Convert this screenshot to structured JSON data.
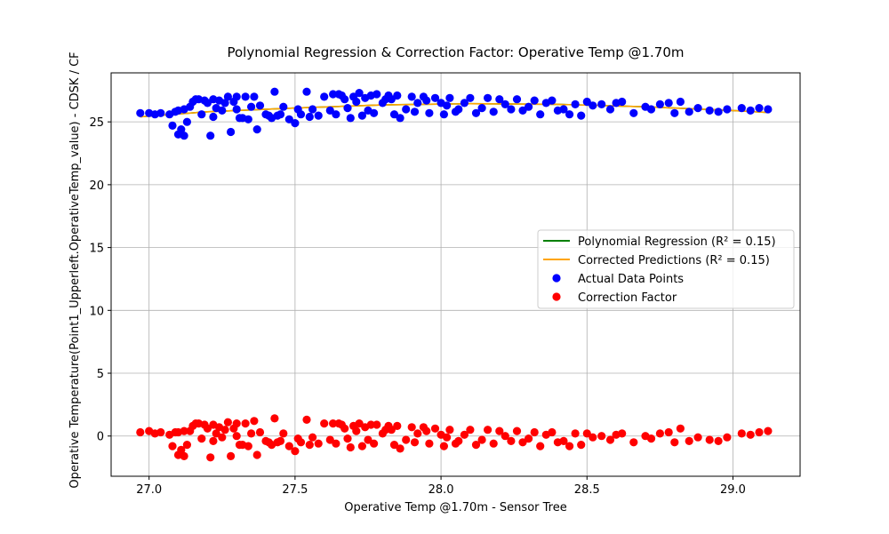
{
  "chart_data": {
    "type": "scatter",
    "title": "Polynomial Regression & Correction Factor: Operative Temp @1.70m",
    "xlabel": "Operative Temp @1.70m - Sensor Tree",
    "ylabel": "Operative Temperature(Point1_Upperleft.OperativeTemp_value) - CDSK / CF",
    "xlim": [
      26.87,
      29.23
    ],
    "ylim": [
      -3.2,
      28.9
    ],
    "xticks": [
      27.0,
      27.5,
      28.0,
      28.5,
      29.0
    ],
    "xtick_labels": [
      "27.0",
      "27.5",
      "28.0",
      "28.5",
      "29.0"
    ],
    "yticks": [
      0,
      5,
      10,
      15,
      20,
      25
    ],
    "ytick_labels": [
      "0",
      "5",
      "10",
      "15",
      "20",
      "25"
    ],
    "grid": true,
    "legend_position": "center-right",
    "legend": [
      {
        "label": "Polynomial Regression (R² = 0.15)",
        "kind": "line",
        "color": "#008000"
      },
      {
        "label": "Corrected Predictions (R² = 0.15)",
        "kind": "line",
        "color": "#ffa500"
      },
      {
        "label": "Actual Data Points",
        "kind": "marker",
        "color": "#0000ff"
      },
      {
        "label": "Correction Factor",
        "kind": "marker",
        "color": "#ff0000"
      }
    ],
    "series": [
      {
        "name": "Polynomial Regression (R² = 0.15)",
        "type": "line",
        "color": "#008000",
        "x": [
          26.97,
          27.2,
          27.5,
          27.8,
          28.1,
          28.4,
          28.7,
          29.0,
          29.12
        ],
        "y": [
          25.4,
          25.8,
          26.1,
          26.35,
          26.45,
          26.4,
          26.2,
          25.9,
          25.75
        ]
      },
      {
        "name": "Corrected Predictions (R² = 0.15)",
        "type": "line",
        "color": "#ffa500",
        "x": [
          26.97,
          27.2,
          27.5,
          27.8,
          28.1,
          28.4,
          28.7,
          29.0,
          29.12
        ],
        "y": [
          25.4,
          25.8,
          26.1,
          26.35,
          26.45,
          26.4,
          26.2,
          25.9,
          25.75
        ]
      },
      {
        "name": "Actual Data Points",
        "type": "scatter",
        "color": "#0000ff",
        "x": [
          26.97,
          27.0,
          27.02,
          27.04,
          27.07,
          27.08,
          27.09,
          27.1,
          27.1,
          27.11,
          27.12,
          27.12,
          27.13,
          27.14,
          27.15,
          27.16,
          27.17,
          27.18,
          27.19,
          27.2,
          27.21,
          27.22,
          27.22,
          27.23,
          27.24,
          27.25,
          27.26,
          27.27,
          27.28,
          27.29,
          27.3,
          27.3,
          27.31,
          27.32,
          27.33,
          27.34,
          27.35,
          27.36,
          27.37,
          27.38,
          27.4,
          27.41,
          27.42,
          27.43,
          27.44,
          27.45,
          27.46,
          27.48,
          27.5,
          27.51,
          27.52,
          27.54,
          27.55,
          27.56,
          27.58,
          27.6,
          27.62,
          27.63,
          27.64,
          27.65,
          27.66,
          27.67,
          27.68,
          27.69,
          27.7,
          27.71,
          27.72,
          27.73,
          27.74,
          27.75,
          27.76,
          27.77,
          27.78,
          27.8,
          27.81,
          27.82,
          27.83,
          27.84,
          27.85,
          27.86,
          27.88,
          27.9,
          27.91,
          27.92,
          27.94,
          27.95,
          27.96,
          27.98,
          28.0,
          28.01,
          28.02,
          28.03,
          28.05,
          28.06,
          28.08,
          28.1,
          28.12,
          28.14,
          28.16,
          28.18,
          28.2,
          28.22,
          28.24,
          28.26,
          28.28,
          28.3,
          28.32,
          28.34,
          28.36,
          28.38,
          28.4,
          28.42,
          28.44,
          28.46,
          28.48,
          28.5,
          28.52,
          28.55,
          28.58,
          28.6,
          28.62,
          28.66,
          28.7,
          28.72,
          28.75,
          28.78,
          28.8,
          28.82,
          28.85,
          28.88,
          28.92,
          28.95,
          28.98,
          29.03,
          29.06,
          29.09,
          29.12
        ],
        "y": [
          25.7,
          25.7,
          25.6,
          25.7,
          25.6,
          24.7,
          25.8,
          24.0,
          25.9,
          24.4,
          26.0,
          23.9,
          25.0,
          26.2,
          26.6,
          26.8,
          26.8,
          25.6,
          26.7,
          26.5,
          23.9,
          25.4,
          26.8,
          26.1,
          26.7,
          25.9,
          26.5,
          27.0,
          24.2,
          26.6,
          26.0,
          27.0,
          25.3,
          25.3,
          27.0,
          25.2,
          26.2,
          27.0,
          24.4,
          26.3,
          25.6,
          25.5,
          25.3,
          27.4,
          25.5,
          25.6,
          26.2,
          25.2,
          24.9,
          26.0,
          25.6,
          27.4,
          25.4,
          26.0,
          25.5,
          27.0,
          25.9,
          27.2,
          25.6,
          27.2,
          27.1,
          26.8,
          26.1,
          25.3,
          27.0,
          26.6,
          27.3,
          25.5,
          26.9,
          25.9,
          27.1,
          25.7,
          27.2,
          26.5,
          26.8,
          27.1,
          26.8,
          25.6,
          27.1,
          25.3,
          26.0,
          27.0,
          25.8,
          26.5,
          27.0,
          26.7,
          25.7,
          26.9,
          26.5,
          25.6,
          26.3,
          26.9,
          25.8,
          26.0,
          26.5,
          26.9,
          25.7,
          26.1,
          26.9,
          25.8,
          26.8,
          26.4,
          26.0,
          26.8,
          25.9,
          26.2,
          26.7,
          25.6,
          26.5,
          26.7,
          25.9,
          26.0,
          25.6,
          26.4,
          25.5,
          26.6,
          26.3,
          26.4,
          26.0,
          26.5,
          26.6,
          25.7,
          26.2,
          26.0,
          26.4,
          26.5,
          25.7,
          26.6,
          25.8,
          26.1,
          25.9,
          25.8,
          26.0,
          26.1,
          25.9,
          26.1,
          26.0
        ],
        "note_style": "filled circle markers"
      },
      {
        "name": "Correction Factor",
        "type": "scatter",
        "color": "#ff0000",
        "x": [
          26.97,
          27.0,
          27.02,
          27.04,
          27.07,
          27.08,
          27.09,
          27.1,
          27.1,
          27.11,
          27.12,
          27.12,
          27.13,
          27.14,
          27.15,
          27.16,
          27.17,
          27.18,
          27.19,
          27.2,
          27.21,
          27.22,
          27.22,
          27.23,
          27.24,
          27.25,
          27.26,
          27.27,
          27.28,
          27.29,
          27.3,
          27.3,
          27.31,
          27.32,
          27.33,
          27.34,
          27.35,
          27.36,
          27.37,
          27.38,
          27.4,
          27.41,
          27.42,
          27.43,
          27.44,
          27.45,
          27.46,
          27.48,
          27.5,
          27.51,
          27.52,
          27.54,
          27.55,
          27.56,
          27.58,
          27.6,
          27.62,
          27.63,
          27.64,
          27.65,
          27.66,
          27.67,
          27.68,
          27.69,
          27.7,
          27.71,
          27.72,
          27.73,
          27.74,
          27.75,
          27.76,
          27.77,
          27.78,
          27.8,
          27.81,
          27.82,
          27.83,
          27.84,
          27.85,
          27.86,
          27.88,
          27.9,
          27.91,
          27.92,
          27.94,
          27.95,
          27.96,
          27.98,
          28.0,
          28.01,
          28.02,
          28.03,
          28.05,
          28.06,
          28.08,
          28.1,
          28.12,
          28.14,
          28.16,
          28.18,
          28.2,
          28.22,
          28.24,
          28.26,
          28.28,
          28.3,
          28.32,
          28.34,
          28.36,
          28.38,
          28.4,
          28.42,
          28.44,
          28.46,
          28.48,
          28.5,
          28.52,
          28.55,
          28.58,
          28.6,
          28.62,
          28.66,
          28.7,
          28.72,
          28.75,
          28.78,
          28.8,
          28.82,
          28.85,
          28.88,
          28.92,
          28.95,
          28.98,
          29.03,
          29.06,
          29.09,
          29.12
        ],
        "y": [
          0.3,
          0.4,
          0.2,
          0.3,
          0.1,
          -0.8,
          0.3,
          -1.5,
          0.3,
          -1.1,
          0.4,
          -1.6,
          -0.7,
          0.4,
          0.8,
          1.0,
          1.0,
          -0.2,
          0.9,
          0.6,
          -1.7,
          -0.4,
          0.9,
          0.2,
          0.7,
          -0.1,
          0.5,
          1.1,
          -1.6,
          0.6,
          0.0,
          1.0,
          -0.7,
          -0.7,
          1.0,
          -0.8,
          0.2,
          1.2,
          -1.5,
          0.3,
          -0.4,
          -0.5,
          -0.7,
          1.4,
          -0.5,
          -0.4,
          0.2,
          -0.8,
          -1.2,
          -0.2,
          -0.5,
          1.3,
          -0.7,
          -0.1,
          -0.6,
          1.0,
          -0.3,
          1.0,
          -0.6,
          1.0,
          0.9,
          0.6,
          -0.2,
          -0.9,
          0.8,
          0.4,
          1.0,
          -0.8,
          0.7,
          -0.3,
          0.9,
          -0.6,
          0.9,
          0.2,
          0.5,
          0.8,
          0.5,
          -0.7,
          0.8,
          -1.0,
          -0.3,
          0.7,
          -0.5,
          0.2,
          0.7,
          0.4,
          -0.6,
          0.6,
          0.1,
          -0.8,
          -0.1,
          0.5,
          -0.6,
          -0.4,
          0.1,
          0.5,
          -0.7,
          -0.3,
          0.5,
          -0.6,
          0.4,
          0.0,
          -0.4,
          0.4,
          -0.5,
          -0.2,
          0.3,
          -0.8,
          0.1,
          0.3,
          -0.5,
          -0.4,
          -0.8,
          0.2,
          -0.7,
          0.2,
          -0.1,
          0.0,
          -0.3,
          0.1,
          0.2,
          -0.5,
          0.0,
          -0.2,
          0.2,
          0.3,
          -0.5,
          0.6,
          -0.4,
          -0.1,
          -0.3,
          -0.4,
          -0.1,
          0.2,
          0.1,
          0.3,
          0.4
        ]
      }
    ]
  }
}
